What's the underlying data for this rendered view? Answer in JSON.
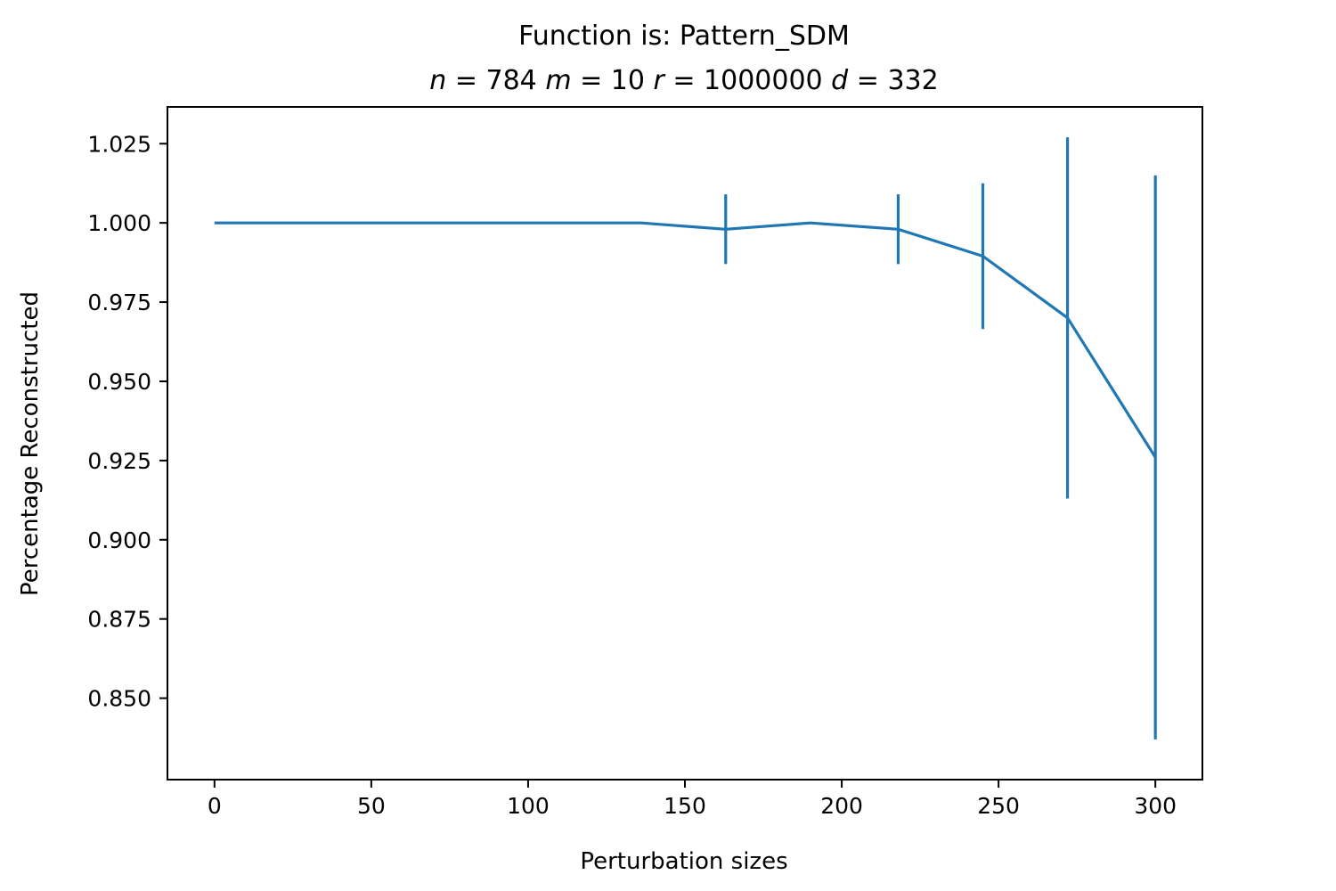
{
  "chart_data": {
    "type": "line",
    "title": "Function is: Pattern_SDM",
    "subtitle_params": [
      {
        "symbol": "n",
        "value": "784"
      },
      {
        "symbol": "m",
        "value": "10"
      },
      {
        "symbol": "r",
        "value": "1000000"
      },
      {
        "symbol": "d",
        "value": "332"
      }
    ],
    "xlabel": "Perturbation sizes",
    "ylabel": "Percentage Reconstructed",
    "xlim": [
      -15,
      315
    ],
    "ylim": [
      0.8243,
      1.0366
    ],
    "xticks": [
      0,
      50,
      100,
      150,
      200,
      250,
      300
    ],
    "yticks": [
      0.85,
      0.875,
      0.9,
      0.925,
      0.95,
      0.975,
      1.0,
      1.025
    ],
    "ytick_labels": [
      "0.850",
      "0.875",
      "0.900",
      "0.925",
      "0.950",
      "0.975",
      "1.000",
      "1.025"
    ],
    "grid": false,
    "series": [
      {
        "color": "#1f77b4",
        "points": [
          {
            "x": 0,
            "y": 1.0,
            "err": 0
          },
          {
            "x": 27,
            "y": 1.0,
            "err": 0
          },
          {
            "x": 54,
            "y": 1.0,
            "err": 0
          },
          {
            "x": 82,
            "y": 1.0,
            "err": 0
          },
          {
            "x": 109,
            "y": 1.0,
            "err": 0
          },
          {
            "x": 136,
            "y": 1.0,
            "err": 0
          },
          {
            "x": 163,
            "y": 0.998,
            "err": 0.011
          },
          {
            "x": 190,
            "y": 1.0,
            "err": 0
          },
          {
            "x": 218,
            "y": 0.998,
            "err": 0.011
          },
          {
            "x": 245,
            "y": 0.9895,
            "err": 0.023
          },
          {
            "x": 272,
            "y": 0.97,
            "err": 0.057
          },
          {
            "x": 300,
            "y": 0.926,
            "err": 0.089
          }
        ]
      }
    ]
  }
}
